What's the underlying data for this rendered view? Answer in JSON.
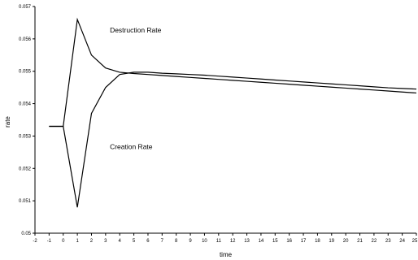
{
  "chart_data": {
    "type": "line",
    "title": "",
    "xlabel": "time",
    "ylabel": "rate",
    "xlim": [
      -2,
      25
    ],
    "ylim": [
      0.05,
      0.057
    ],
    "x_ticks": [
      -2,
      -1,
      0,
      1,
      2,
      3,
      4,
      5,
      6,
      7,
      8,
      9,
      10,
      11,
      12,
      13,
      14,
      15,
      16,
      17,
      18,
      19,
      20,
      21,
      22,
      23,
      24,
      25
    ],
    "y_ticks": [
      "0.05",
      "0.051",
      "0.052",
      "0.053",
      "0.054",
      "0.055",
      "0.056",
      "0.057"
    ],
    "grid": false,
    "series": [
      {
        "name": "Destruction Rate",
        "x": [
          -1,
          0,
          1,
          2,
          3,
          4,
          5,
          6,
          7,
          8,
          9,
          10,
          11,
          12,
          13,
          14,
          15,
          16,
          17,
          18,
          19,
          20,
          21,
          22,
          23,
          24,
          25
        ],
        "y": [
          0.0533,
          0.0533,
          0.0566,
          0.0555,
          0.0551,
          0.05497,
          0.05493,
          0.0549,
          0.05487,
          0.05484,
          0.05481,
          0.05478,
          0.05475,
          0.05472,
          0.05469,
          0.05466,
          0.05463,
          0.0546,
          0.05457,
          0.05454,
          0.05451,
          0.05448,
          0.05445,
          0.05442,
          0.05439,
          0.05436,
          0.05433
        ]
      },
      {
        "name": "Creation Rate",
        "x": [
          -1,
          0,
          1,
          2,
          3,
          4,
          5,
          6,
          7,
          8,
          9,
          10,
          11,
          12,
          13,
          14,
          15,
          16,
          17,
          18,
          19,
          20,
          21,
          22,
          23,
          24,
          25
        ],
        "y": [
          0.0533,
          0.0533,
          0.0508,
          0.0537,
          0.0545,
          0.0549,
          0.05497,
          0.05497,
          0.05494,
          0.05492,
          0.0549,
          0.05488,
          0.05485,
          0.05482,
          0.05479,
          0.05476,
          0.05473,
          0.0547,
          0.05467,
          0.05464,
          0.05461,
          0.05458,
          0.05455,
          0.05452,
          0.05449,
          0.05447,
          0.05445
        ]
      }
    ],
    "annotations": [
      {
        "text": "Destruction Rate",
        "x": 3.3,
        "y": 0.0562
      },
      {
        "text": "Creation Rate",
        "x": 3.3,
        "y": 0.0526
      }
    ]
  }
}
